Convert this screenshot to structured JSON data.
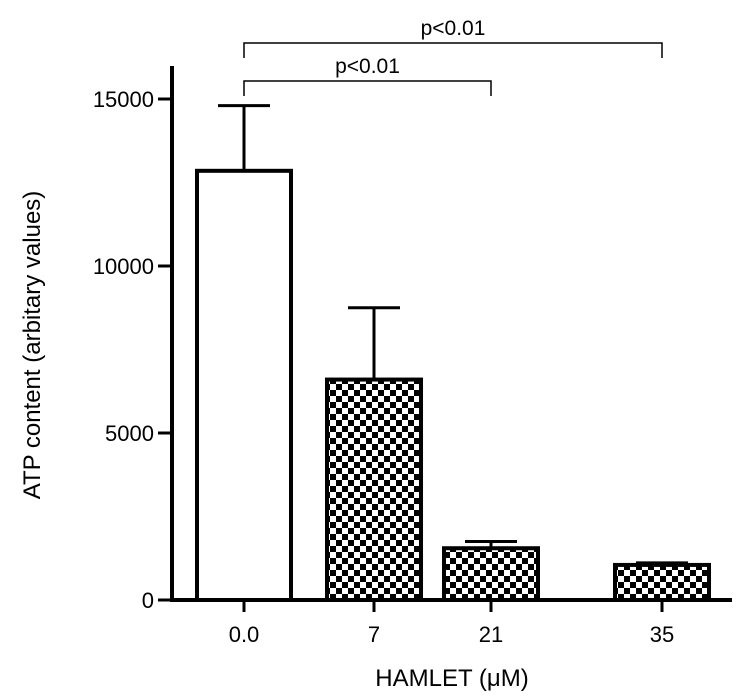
{
  "chart_data": {
    "type": "bar",
    "title": "",
    "xlabel": "HAMLET (μM)",
    "ylabel": "ATP content (arbitary values)",
    "categories": [
      "0.0",
      "7",
      "21",
      "35"
    ],
    "values": [
      12850,
      6600,
      1550,
      1050
    ],
    "errors": [
      1950,
      2150,
      200,
      60
    ],
    "fills": [
      "solid-white",
      "checkered",
      "checkered",
      "checkered"
    ],
    "ylim": [
      0,
      16000
    ],
    "yticks": [
      0,
      5000,
      10000,
      15000
    ],
    "yticks_labels": [
      "0",
      "5000",
      "10000",
      "15000"
    ],
    "grid": false,
    "significance": [
      {
        "from": 0,
        "to": 2,
        "label": "p<0.01"
      },
      {
        "from": 0,
        "to": 3,
        "label": "p<0.01"
      }
    ]
  }
}
